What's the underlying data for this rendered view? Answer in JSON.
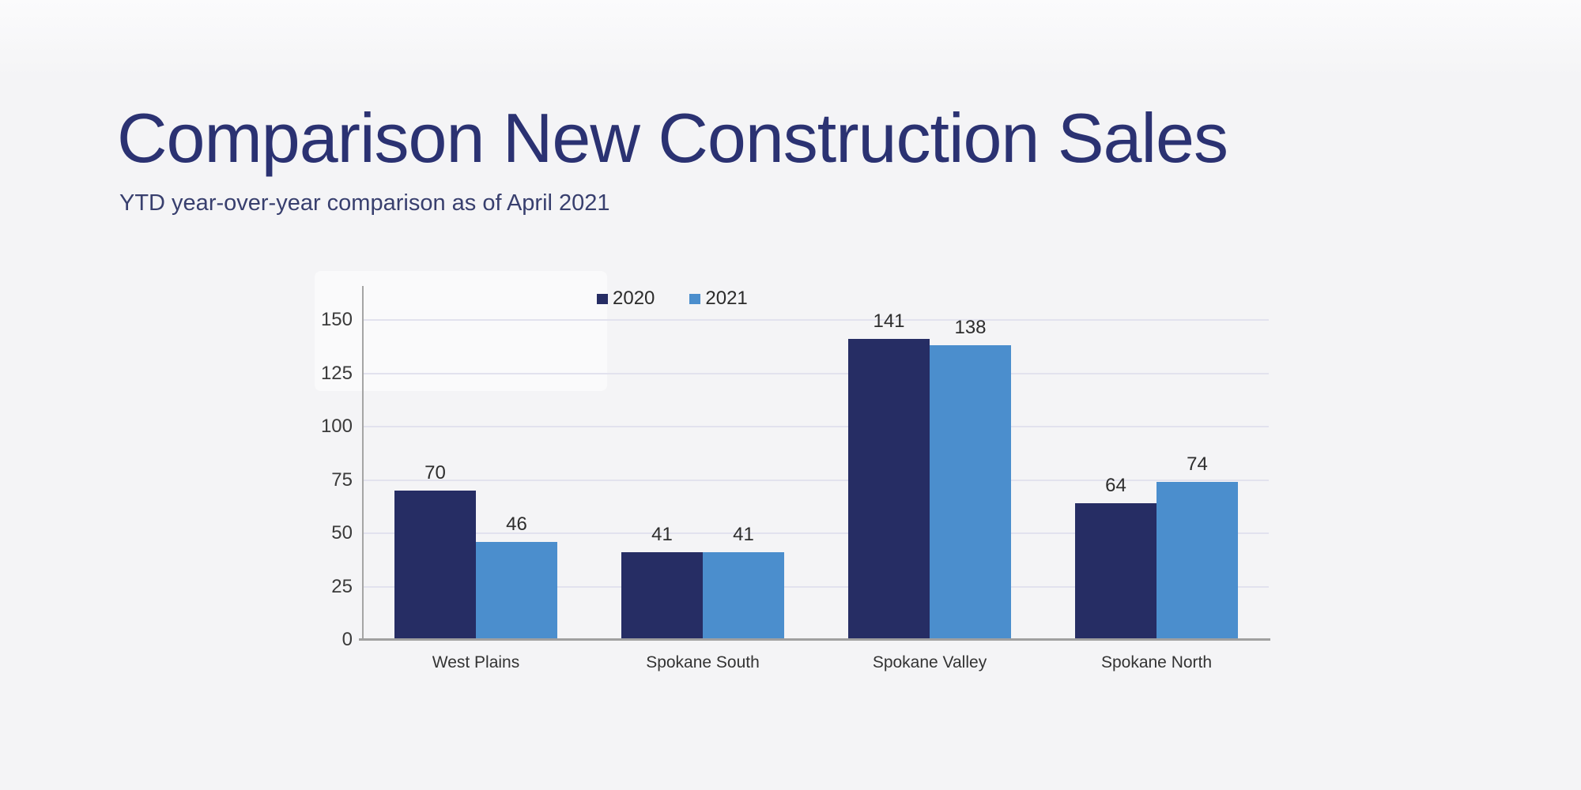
{
  "header": {
    "title": "Comparison New Construction Sales",
    "subtitle": "YTD year-over-year comparison as of April 2021"
  },
  "chart_data": {
    "type": "bar",
    "title": "",
    "xlabel": "",
    "ylabel": "",
    "categories": [
      "West Plains",
      "Spokane South",
      "Spokane Valley",
      "Spokane North"
    ],
    "series": [
      {
        "name": "2020",
        "color": "#262d64",
        "values": [
          70,
          41,
          141,
          64
        ]
      },
      {
        "name": "2021",
        "color": "#4b8ecd",
        "values": [
          46,
          41,
          138,
          74
        ]
      }
    ],
    "y_ticks": [
      0,
      25,
      50,
      75,
      100,
      125,
      150
    ],
    "ylim": [
      0,
      165
    ],
    "grid": true,
    "legend_position": "top-center",
    "value_labels": true
  },
  "colors": {
    "background": "#f4f4f6",
    "title_text": "#2b3272",
    "subtitle_text": "#383f6e",
    "axis_line": "#a5a5a5",
    "baseline": "#a0a0a0",
    "gridline": "#e2e2ee",
    "tick_text": "#3a3a3a",
    "category_text": "#333333",
    "value_text": "#2d2d2d",
    "legend_text": "#2b2b2b",
    "panel": "rgba(255,255,255,0.55)"
  }
}
